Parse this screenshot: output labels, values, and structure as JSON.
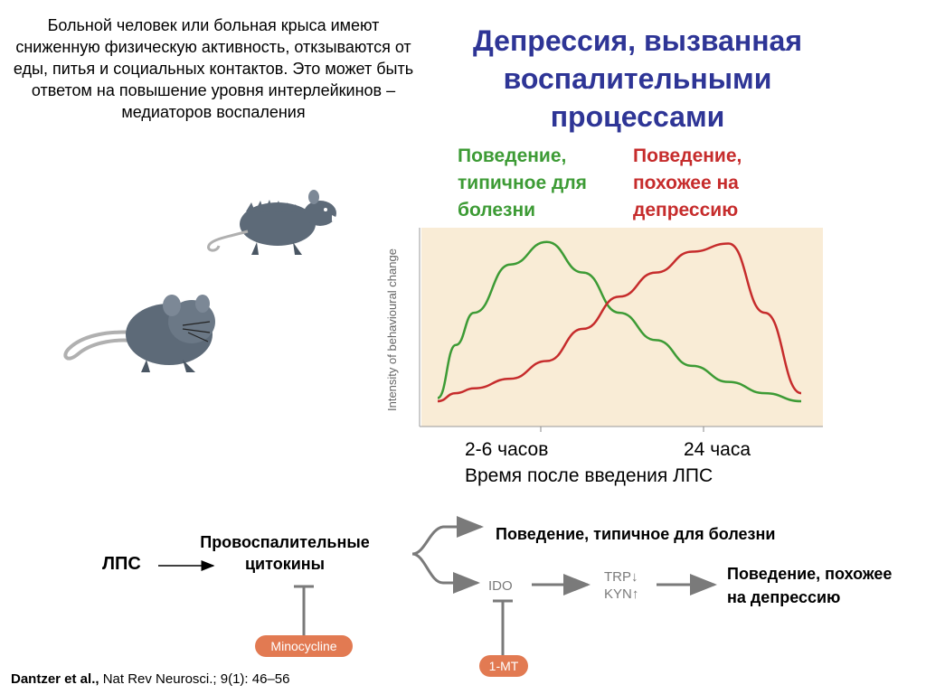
{
  "intro_text": "Больной человек или больная крыса имеют сниженную физическую активность, откзываются от еды,  питья и социальных контактов. Это может быть ответом на повышение уровня интерлейкинов – медиаторов воспаления",
  "title": "Депрессия, вызванная воспалительными процессами",
  "legend": {
    "sickness": "Поведение, типичное для болезни",
    "depressive": "Поведение, похожее на депрессию"
  },
  "colors": {
    "title": "#2e3596",
    "sickness": "#3d9b35",
    "depressive": "#c62c2c",
    "chart_bg": "#f9ecd6",
    "drug_box": "#e27a52"
  },
  "chart_data": {
    "type": "line",
    "ylabel": "Intensity of behavioural change",
    "xlabel": "Время после введения ЛПС",
    "x_ticks": [
      "2-6 часов",
      "24 часа"
    ],
    "x": [
      0,
      0.05,
      0.1,
      0.2,
      0.3,
      0.4,
      0.5,
      0.6,
      0.7,
      0.8,
      0.9,
      1.0
    ],
    "series": [
      {
        "color": "#3d9b35",
        "values": [
          0.02,
          0.35,
          0.55,
          0.85,
          0.99,
          0.8,
          0.55,
          0.38,
          0.22,
          0.12,
          0.05,
          0.0
        ]
      },
      {
        "color": "#c62c2c",
        "values": [
          0.0,
          0.05,
          0.08,
          0.14,
          0.25,
          0.45,
          0.65,
          0.8,
          0.93,
          0.98,
          0.55,
          0.05
        ]
      }
    ],
    "ylim": [
      0,
      1
    ],
    "xlim": [
      0,
      1
    ],
    "grid": false
  },
  "time_labels": {
    "early": "2-6 часов",
    "late": "24 часа",
    "axis": "Время после введения ЛПС"
  },
  "pathway": {
    "lps": "ЛПС",
    "cytokines": "Провоспалительные цитокины",
    "sickness_behaviour": "Поведение, типичное для болезни",
    "ido": "IDO",
    "trp": "TRP↓",
    "kyn": "KYN↑",
    "depressive_behaviour": "Поведение, похожее на депрессию",
    "minocycline": "Minocycline",
    "one_mt": "1-MT"
  },
  "citation": {
    "authors": "Dantzer et al.,",
    "source": "Nat Rev Neurosci.; 9(1): 46–56"
  }
}
